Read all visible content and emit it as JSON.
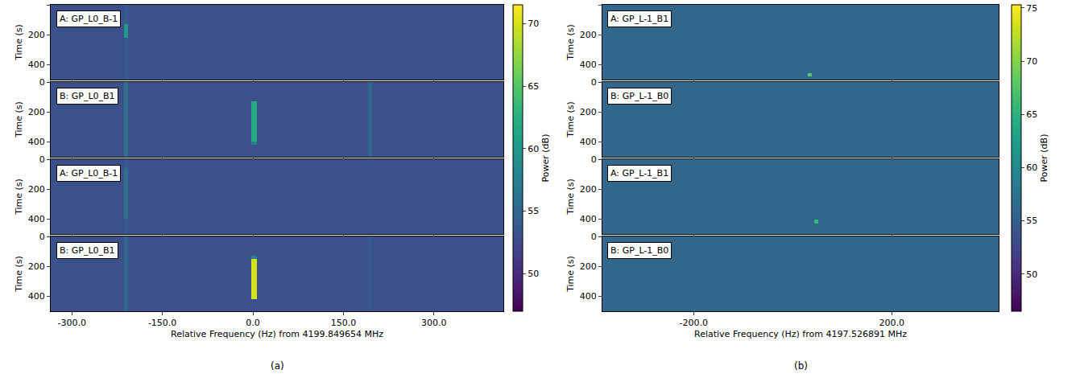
{
  "chart_data": [
    {
      "type": "heatmap",
      "caption": "(a)",
      "xlabel": "Relative Frequency (Hz) from 4199.849654 MHz",
      "ylabel": "Time (s)",
      "xlim": [
        -335,
        415
      ],
      "xticks": [
        {
          "value": -300,
          "label": "-300.0"
        },
        {
          "value": -150,
          "label": "-150.0"
        },
        {
          "value": 0,
          "label": "0.0"
        },
        {
          "value": 150,
          "label": "150.0"
        },
        {
          "value": 300,
          "label": "300.0"
        }
      ],
      "ylim": [
        0,
        500
      ],
      "yticks": [
        0,
        200,
        400
      ],
      "colorbar": {
        "label": "Power (dB)",
        "range": [
          47,
          71.5
        ],
        "ticks": [
          50,
          55,
          60,
          65,
          70
        ]
      },
      "x_edges": [
        -335,
        -214,
        -207,
        -3,
        6,
        191,
        198,
        415
      ],
      "y_edges": [
        0,
        60,
        130,
        150,
        220,
        400,
        420,
        500
      ],
      "subplots": [
        {
          "title": "A: GP_L0_B-1",
          "z": [
            [
              53,
              54,
              53,
              53,
              53,
              53,
              53
            ],
            [
              53,
              54,
              53,
              53,
              53,
              53,
              53
            ],
            [
              53,
              60,
              53,
              53,
              53,
              53,
              53
            ],
            [
              53,
              60,
              53,
              53,
              53,
              53,
              53
            ],
            [
              53,
              54,
              53,
              53,
              53,
              53,
              53
            ],
            [
              53,
              54,
              53,
              53,
              53,
              53,
              53
            ],
            [
              53,
              54,
              53,
              53,
              53,
              53,
              53
            ]
          ]
        },
        {
          "title": "B: GP_L0_B1",
          "z": [
            [
              53,
              56,
              53,
              53,
              53,
              55,
              53
            ],
            [
              53,
              56,
              53,
              53,
              53,
              55,
              53
            ],
            [
              53,
              56,
              53,
              62,
              53,
              55,
              53
            ],
            [
              53,
              56,
              53,
              62,
              53,
              55,
              53
            ],
            [
              53,
              56,
              53,
              62,
              53,
              55,
              53
            ],
            [
              53,
              56,
              53,
              58,
              53,
              55,
              53
            ],
            [
              53,
              56,
              53,
              53,
              53,
              55,
              53
            ]
          ]
        },
        {
          "title": "A: GP_L0_B-1",
          "z": [
            [
              53,
              54,
              53,
              53,
              53,
              53,
              53
            ],
            [
              53,
              56,
              53,
              53,
              53,
              53,
              53
            ],
            [
              53,
              56,
              53,
              53,
              53,
              53,
              53
            ],
            [
              53,
              56,
              53,
              53,
              53,
              53,
              53
            ],
            [
              53,
              56,
              53,
              53,
              53,
              53,
              53
            ],
            [
              53,
              54,
              53,
              53,
              53,
              53,
              53
            ],
            [
              53,
              54,
              53,
              53,
              53,
              53,
              53
            ]
          ]
        },
        {
          "title": "B: GP_L0_B1",
          "z": [
            [
              53,
              55,
              53,
              53,
              53,
              54,
              53
            ],
            [
              53,
              55,
              53,
              53,
              53,
              54,
              53
            ],
            [
              53,
              55,
              53,
              58,
              53,
              54,
              53
            ],
            [
              53,
              55,
              53,
              70,
              53,
              54,
              53
            ],
            [
              53,
              55,
              53,
              70,
              53,
              54,
              53
            ],
            [
              53,
              55,
              53,
              70,
              53,
              54,
              53
            ],
            [
              53,
              55,
              53,
              53,
              53,
              54,
              53
            ]
          ]
        }
      ]
    },
    {
      "type": "heatmap",
      "caption": "(b)",
      "xlabel": "Relative Frequency (Hz) from 4197.526891 MHz",
      "ylabel": "Time (s)",
      "xlim": [
        -384,
        416
      ],
      "xticks": [
        {
          "value": -200,
          "label": "-200.0"
        },
        {
          "value": 200,
          "label": "200.0"
        }
      ],
      "ylim": [
        0,
        500
      ],
      "yticks": [
        0,
        200,
        400
      ],
      "colorbar": {
        "label": "Power (dB)",
        "range": [
          46.5,
          75.3
        ],
        "ticks": [
          50,
          55,
          60,
          65,
          70,
          75
        ]
      },
      "x_edges": [
        -384,
        31,
        39,
        44,
        52,
        416
      ],
      "y_edges": [
        0,
        405,
        430,
        455,
        480,
        500
      ],
      "subplots": [
        {
          "title": "A: GP_L-1_B1",
          "z": [
            [
              56,
              56,
              56,
              56,
              56
            ],
            [
              56,
              56,
              56,
              56,
              56
            ],
            [
              56,
              56,
              56,
              56,
              56
            ],
            [
              56,
              68,
              56,
              56,
              56
            ],
            [
              56,
              56,
              56,
              56,
              56
            ]
          ]
        },
        {
          "title": "B: GP_L-1_B0",
          "z": [
            [
              56,
              56,
              56,
              56,
              56
            ],
            [
              56,
              56,
              56,
              56,
              56
            ],
            [
              56,
              56,
              56,
              56,
              56
            ],
            [
              56,
              56,
              56,
              56,
              56
            ],
            [
              56,
              56,
              56,
              56,
              56
            ]
          ]
        },
        {
          "title": "A: GP_L-1_B1",
          "z": [
            [
              56,
              56,
              56,
              56,
              56
            ],
            [
              56,
              56,
              56,
              66,
              56
            ],
            [
              56,
              56,
              56,
              56,
              56
            ],
            [
              56,
              56,
              56,
              56,
              56
            ],
            [
              56,
              56,
              56,
              56,
              56
            ]
          ]
        },
        {
          "title": "B: GP_L-1_B0",
          "z": [
            [
              56,
              56,
              56,
              56,
              56
            ],
            [
              56,
              56,
              56,
              56,
              56
            ],
            [
              56,
              56,
              56,
              56,
              56
            ],
            [
              56,
              56,
              56,
              56,
              56
            ],
            [
              56,
              56,
              56,
              56,
              56
            ]
          ]
        }
      ]
    }
  ]
}
